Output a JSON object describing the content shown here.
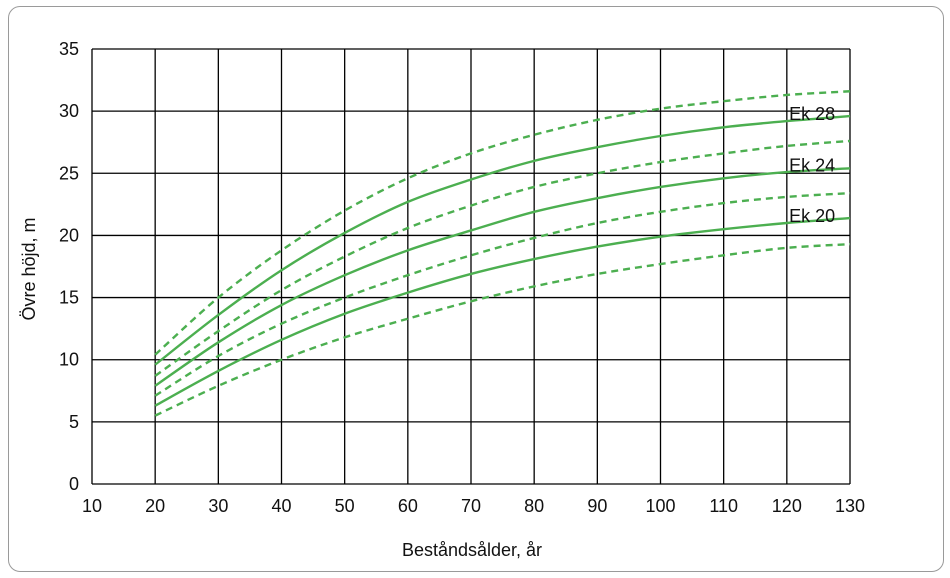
{
  "chart_data": {
    "type": "line",
    "xlabel": "Beståndsålder, år",
    "ylabel": "Övre höjd, m",
    "xlim": [
      10,
      130
    ],
    "ylim": [
      0,
      35
    ],
    "xticks": [
      10,
      20,
      30,
      40,
      50,
      60,
      70,
      80,
      90,
      100,
      110,
      120,
      130
    ],
    "yticks": [
      0,
      5,
      10,
      15,
      20,
      25,
      30,
      35
    ],
    "grid": true,
    "colors": {
      "series": "#4caf50",
      "grid": "#000000"
    },
    "series": [
      {
        "name": "Ek 28",
        "style": "solid",
        "label_at_x": 124,
        "x": [
          20,
          30,
          40,
          50,
          60,
          70,
          80,
          90,
          100,
          110,
          120,
          130
        ],
        "y": [
          9.6,
          13.6,
          17.2,
          20.2,
          22.7,
          24.5,
          26.0,
          27.1,
          28.0,
          28.7,
          29.2,
          29.6
        ]
      },
      {
        "name": "",
        "style": "dashed",
        "x": [
          20,
          30,
          40,
          50,
          60,
          70,
          80,
          90,
          100,
          110,
          120,
          130
        ],
        "y": [
          10.4,
          15.0,
          18.8,
          22.0,
          24.6,
          26.6,
          28.1,
          29.3,
          30.2,
          30.8,
          31.3,
          31.6
        ]
      },
      {
        "name": "",
        "style": "dashed",
        "x": [
          20,
          30,
          40,
          50,
          60,
          70,
          80,
          90,
          100,
          110,
          120,
          130
        ],
        "y": [
          8.7,
          12.3,
          15.6,
          18.3,
          20.6,
          22.4,
          23.9,
          25.0,
          25.9,
          26.6,
          27.2,
          27.6
        ]
      },
      {
        "name": "Ek 24",
        "style": "solid",
        "label_at_x": 124,
        "x": [
          20,
          30,
          40,
          50,
          60,
          70,
          80,
          90,
          100,
          110,
          120,
          130
        ],
        "y": [
          7.9,
          11.4,
          14.4,
          16.8,
          18.8,
          20.4,
          21.9,
          23.0,
          23.9,
          24.6,
          25.1,
          25.4
        ]
      },
      {
        "name": "",
        "style": "dashed",
        "x": [
          20,
          30,
          40,
          50,
          60,
          70,
          80,
          90,
          100,
          110,
          120,
          130
        ],
        "y": [
          7.1,
          10.3,
          12.9,
          15.0,
          16.8,
          18.4,
          19.8,
          21.0,
          21.9,
          22.6,
          23.1,
          23.4
        ]
      },
      {
        "name": "Ek 20",
        "style": "solid",
        "label_at_x": 124,
        "x": [
          20,
          30,
          40,
          50,
          60,
          70,
          80,
          90,
          100,
          110,
          120,
          130
        ],
        "y": [
          6.3,
          9.1,
          11.6,
          13.7,
          15.4,
          16.9,
          18.1,
          19.1,
          19.9,
          20.5,
          21.0,
          21.4
        ]
      },
      {
        "name": "",
        "style": "dashed",
        "x": [
          20,
          30,
          40,
          50,
          60,
          70,
          80,
          90,
          100,
          110,
          120,
          130
        ],
        "y": [
          5.5,
          7.9,
          10.0,
          11.8,
          13.3,
          14.7,
          15.9,
          16.9,
          17.7,
          18.4,
          19.0,
          19.3
        ]
      }
    ]
  }
}
